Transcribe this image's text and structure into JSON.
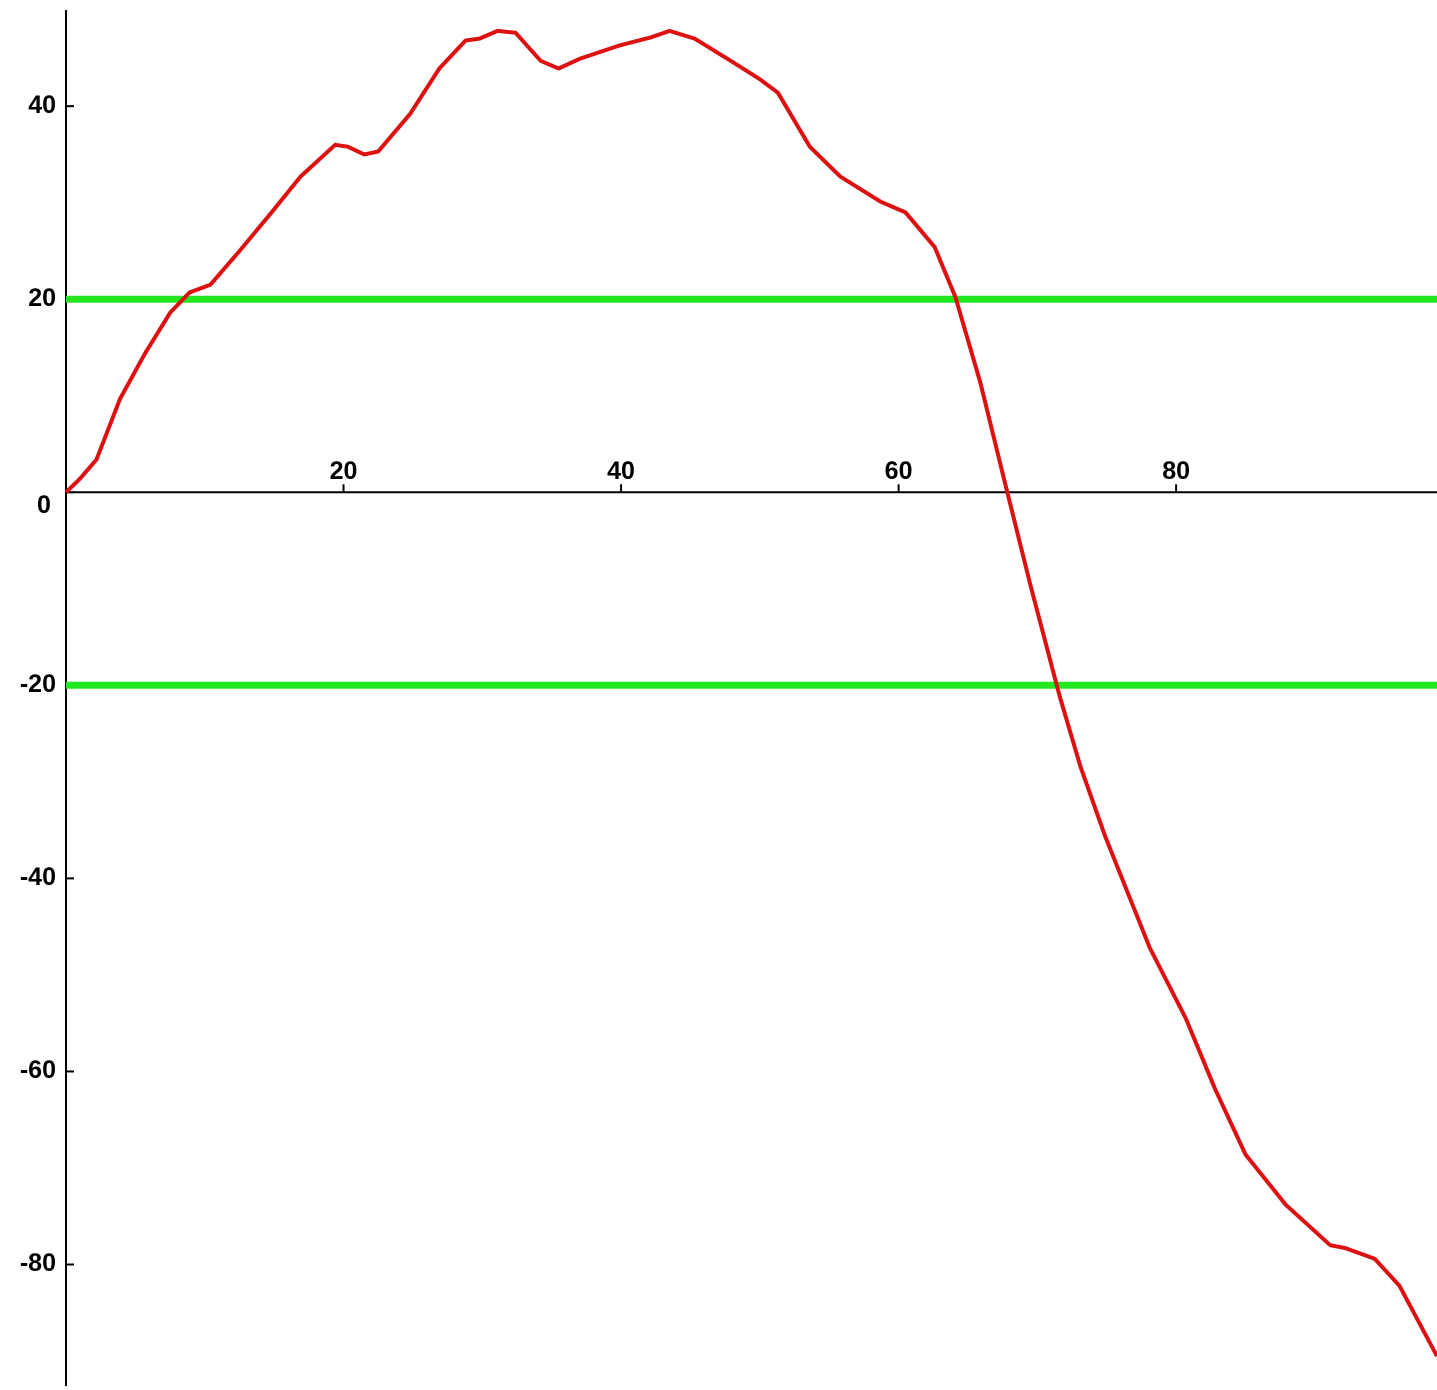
{
  "chart_data": {
    "type": "line",
    "xlim": [
      0,
      98.8
    ],
    "ylim": [
      -93,
      51
    ],
    "xticks": [
      20,
      40,
      60,
      80
    ],
    "yticks": [
      -80,
      -60,
      -40,
      -20,
      0,
      20,
      40
    ],
    "series": [
      {
        "color": "#dd1111",
        "x": [
          0,
          1,
          2.2,
          3.9,
          5.7,
          7.5,
          8.9,
          10.4,
          12.5,
          14.7,
          16.9,
          19.4,
          20.3,
          21.5,
          22.5,
          24.8,
          26.9,
          28.8,
          29.8,
          31.1,
          32.4,
          34.2,
          35.5,
          37,
          39.9,
          42.1,
          43.5,
          45.3,
          47.9,
          50,
          51.3,
          53.6,
          55.8,
          58.7,
          60.5,
          62.6,
          64.1,
          65.9,
          67.7,
          69.5,
          71.6,
          73.1,
          74.9,
          78.1,
          80.7,
          82.8,
          85,
          87.9,
          91.1,
          92.2,
          94.3,
          96.1,
          98.8
        ],
        "values": [
          0,
          1.4,
          3.4,
          9.7,
          14.4,
          18.6,
          20.7,
          21.5,
          25,
          28.8,
          32.7,
          36,
          35.8,
          35,
          35.3,
          39.2,
          43.9,
          46.8,
          47,
          47.8,
          47.6,
          44.7,
          43.9,
          44.9,
          46.3,
          47.1,
          47.8,
          47,
          44.7,
          42.8,
          41.4,
          35.8,
          32.7,
          30.1,
          29,
          25.4,
          20.2,
          11.3,
          0.8,
          -9.6,
          -21.1,
          -28.4,
          -35.7,
          -47.2,
          -54.5,
          -61.8,
          -68.6,
          -73.8,
          -78,
          -78.3,
          -79.4,
          -82.2,
          -89.5
        ]
      },
      {
        "color": "#22e822",
        "x": [
          0,
          98.8
        ],
        "values": [
          20,
          20
        ]
      },
      {
        "color": "#22e822",
        "x": [
          0,
          98.8
        ],
        "values": [
          -20,
          -20
        ]
      }
    ]
  }
}
